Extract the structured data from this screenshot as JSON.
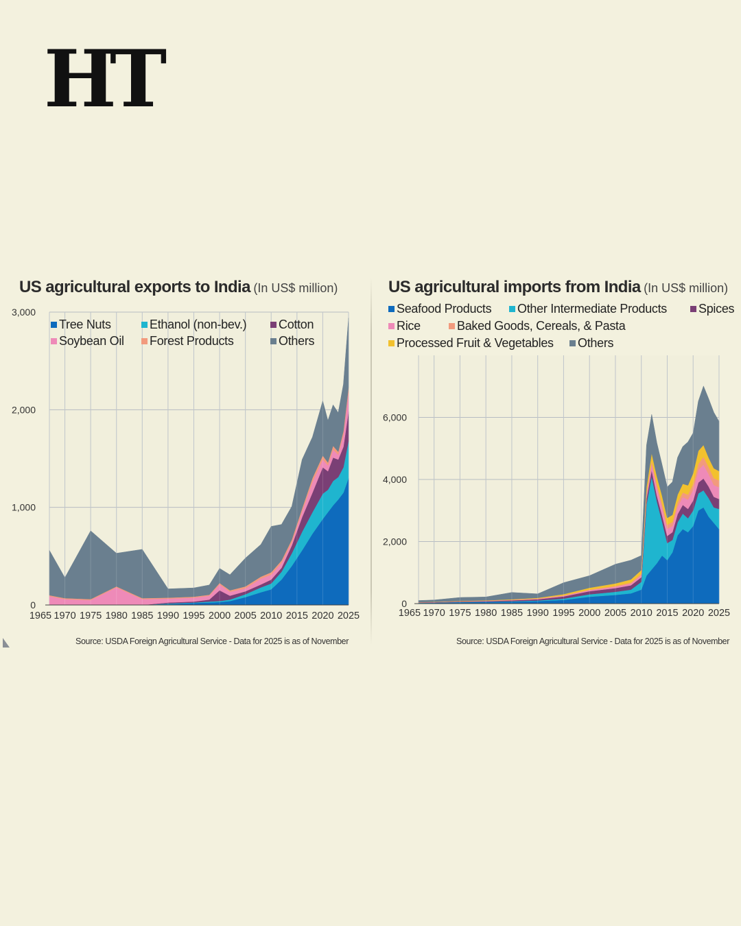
{
  "logo": {
    "text": "HT"
  },
  "charts": [
    {
      "id": "exports",
      "title": "US agricultural exports to India",
      "unit": "(In US$ million)",
      "source": "Source: USDA Foreign Agricultural Service - Data for 2025 is as of November"
    },
    {
      "id": "imports",
      "title": "US agricultural imports from India",
      "unit": "(In US$ million)",
      "source": "Source: USDA Foreign Agricultural Service - Data for 2025 is as of November"
    }
  ],
  "chart_data": [
    {
      "type": "area",
      "stacked": true,
      "title": "US agricultural exports to India",
      "subtitle": "(In US$ million)",
      "x_axis": {
        "min": 1967,
        "max": 2025,
        "ticks": [
          1965,
          1970,
          1975,
          1980,
          1985,
          1990,
          1995,
          2000,
          2005,
          2010,
          2015,
          2020,
          2025
        ]
      },
      "y_axis": {
        "min": 0,
        "max": 3000,
        "ticks": [
          0,
          1000,
          2000,
          3000
        ],
        "tick_labels": [
          "0",
          "1,000",
          "2,000",
          "3,000"
        ]
      },
      "grid": true,
      "legend": {
        "position": "top-left",
        "columns": 3
      },
      "series": [
        {
          "name": "Tree Nuts",
          "color": "#0e6bbd",
          "x": [
            1967,
            1970,
            1975,
            1980,
            1985,
            1990,
            1995,
            1998,
            2000,
            2002,
            2005,
            2008,
            2010,
            2012,
            2014,
            2016,
            2018,
            2020,
            2021,
            2022,
            2023,
            2024,
            2025
          ],
          "values": [
            0,
            0,
            0,
            0,
            0,
            10,
            20,
            25,
            30,
            40,
            80,
            130,
            160,
            260,
            400,
            560,
            730,
            880,
            950,
            1020,
            1080,
            1150,
            1300
          ]
        },
        {
          "name": "Ethanol (non-bev.)",
          "color": "#1fb5cf",
          "x": [
            1967,
            1970,
            1975,
            1980,
            1985,
            1990,
            1995,
            1998,
            2000,
            2002,
            2005,
            2008,
            2010,
            2012,
            2014,
            2016,
            2018,
            2020,
            2021,
            2022,
            2023,
            2024,
            2025
          ],
          "values": [
            0,
            0,
            0,
            0,
            0,
            5,
            5,
            10,
            10,
            15,
            30,
            50,
            60,
            80,
            130,
            190,
            220,
            260,
            230,
            250,
            230,
            260,
            380
          ]
        },
        {
          "name": "Cotton",
          "color": "#7a3f75",
          "x": [
            1967,
            1970,
            1975,
            1980,
            1985,
            1990,
            1995,
            1998,
            2000,
            2002,
            2005,
            2008,
            2010,
            2012,
            2014,
            2016,
            2018,
            2020,
            2021,
            2022,
            2023,
            2024,
            2025
          ],
          "values": [
            0,
            0,
            0,
            0,
            0,
            10,
            10,
            20,
            110,
            40,
            30,
            30,
            40,
            40,
            80,
            150,
            200,
            270,
            190,
            240,
            180,
            210,
            300
          ]
        },
        {
          "name": "Soybean Oil",
          "color": "#ee8ab8",
          "x": [
            1967,
            1970,
            1975,
            1980,
            1985,
            1990,
            1995,
            1998,
            2000,
            2002,
            2005,
            2008,
            2010,
            2012,
            2014,
            2016,
            2018,
            2020,
            2021,
            2022,
            2023,
            2024,
            2025
          ],
          "values": [
            90,
            60,
            50,
            180,
            60,
            40,
            40,
            40,
            60,
            40,
            30,
            60,
            50,
            50,
            30,
            60,
            110,
            80,
            60,
            80,
            50,
            120,
            200
          ]
        },
        {
          "name": "Forest Products",
          "color": "#f29a7d",
          "x": [
            1967,
            1970,
            1975,
            1980,
            1985,
            1990,
            1995,
            1998,
            2000,
            2002,
            2005,
            2008,
            2010,
            2012,
            2014,
            2016,
            2018,
            2020,
            2021,
            2022,
            2023,
            2024,
            2025
          ],
          "values": [
            10,
            10,
            10,
            10,
            10,
            10,
            10,
            10,
            15,
            15,
            20,
            20,
            25,
            25,
            30,
            30,
            40,
            40,
            30,
            40,
            30,
            40,
            50
          ]
        },
        {
          "name": "Others",
          "color": "#6a7f8f",
          "x": [
            1967,
            1970,
            1975,
            1980,
            1985,
            1990,
            1995,
            1998,
            2000,
            2002,
            2005,
            2008,
            2010,
            2012,
            2014,
            2016,
            2018,
            2020,
            2021,
            2022,
            2023,
            2024,
            2025
          ],
          "values": [
            460,
            210,
            700,
            340,
            500,
            90,
            90,
            100,
            150,
            160,
            290,
            330,
            470,
            370,
            340,
            500,
            420,
            560,
            430,
            420,
            400,
            480,
            710
          ]
        }
      ]
    },
    {
      "type": "area",
      "stacked": true,
      "title": "US agricultural imports from India",
      "subtitle": "(In US$ million)",
      "x_axis": {
        "min": 1967,
        "max": 2025,
        "ticks": [
          1965,
          1970,
          1975,
          1980,
          1985,
          1990,
          1995,
          2000,
          2005,
          2010,
          2015,
          2020,
          2025
        ]
      },
      "y_axis": {
        "min": 0,
        "max": 8000,
        "ticks": [
          0,
          2000,
          4000,
          6000
        ],
        "tick_labels": [
          "0",
          "2,000",
          "4,000",
          "6,000"
        ]
      },
      "grid": true,
      "legend": {
        "position": "top",
        "columns": 3
      },
      "series": [
        {
          "name": "Seafood Products",
          "color": "#0e6bbd",
          "x": [
            1967,
            1970,
            1975,
            1980,
            1985,
            1990,
            1995,
            2000,
            2005,
            2008,
            2010,
            2011,
            2012,
            2013,
            2014,
            2015,
            2016,
            2017,
            2018,
            2019,
            2020,
            2021,
            2022,
            2023,
            2024,
            2025
          ],
          "values": [
            20,
            25,
            40,
            50,
            60,
            80,
            120,
            220,
            280,
            330,
            450,
            900,
            1100,
            1300,
            1550,
            1400,
            1650,
            2200,
            2400,
            2300,
            2500,
            3000,
            3100,
            2800,
            2600,
            2400
          ]
        },
        {
          "name": "Other Intermediate Products",
          "color": "#1fb5cf",
          "x": [
            1967,
            1970,
            1975,
            1980,
            1985,
            1990,
            1995,
            2000,
            2005,
            2008,
            2010,
            2011,
            2012,
            2013,
            2014,
            2015,
            2016,
            2017,
            2018,
            2019,
            2020,
            2021,
            2022,
            2023,
            2024,
            2025
          ],
          "values": [
            5,
            5,
            10,
            10,
            15,
            20,
            40,
            80,
            100,
            120,
            250,
            2300,
            3000,
            2000,
            1100,
            550,
            400,
            420,
            500,
            450,
            500,
            550,
            550,
            600,
            500,
            650
          ]
        },
        {
          "name": "Spices",
          "color": "#7a3f75",
          "x": [
            1967,
            1970,
            1975,
            1980,
            1985,
            1990,
            1995,
            2000,
            2005,
            2008,
            2010,
            2011,
            2012,
            2013,
            2014,
            2015,
            2016,
            2017,
            2018,
            2019,
            2020,
            2021,
            2022,
            2023,
            2024,
            2025
          ],
          "values": [
            10,
            12,
            18,
            20,
            30,
            40,
            70,
            100,
            120,
            140,
            150,
            180,
            200,
            180,
            200,
            230,
            250,
            260,
            280,
            300,
            320,
            350,
            380,
            370,
            340,
            320
          ]
        },
        {
          "name": "Rice",
          "color": "#ee8ab8",
          "x": [
            1967,
            1970,
            1975,
            1980,
            1985,
            1990,
            1995,
            2000,
            2005,
            2008,
            2010,
            2011,
            2012,
            2013,
            2014,
            2015,
            2016,
            2017,
            2018,
            2019,
            2020,
            2021,
            2022,
            2023,
            2024,
            2025
          ],
          "values": [
            5,
            5,
            5,
            10,
            10,
            15,
            20,
            30,
            40,
            50,
            60,
            100,
            200,
            250,
            250,
            230,
            200,
            240,
            250,
            300,
            350,
            400,
            450,
            400,
            380,
            380
          ]
        },
        {
          "name": "Baked Goods, Cereals, & Pasta",
          "color": "#f29a7d",
          "x": [
            1967,
            1970,
            1975,
            1980,
            1985,
            1990,
            1995,
            2000,
            2005,
            2008,
            2010,
            2011,
            2012,
            2013,
            2014,
            2015,
            2016,
            2017,
            2018,
            2019,
            2020,
            2021,
            2022,
            2023,
            2024,
            2025
          ],
          "values": [
            5,
            5,
            5,
            5,
            10,
            10,
            15,
            20,
            30,
            40,
            50,
            80,
            100,
            120,
            130,
            130,
            130,
            140,
            150,
            160,
            180,
            200,
            250,
            230,
            220,
            220
          ]
        },
        {
          "name": "Processed Fruit & Vegetables",
          "color": "#f2c12e",
          "x": [
            1967,
            1970,
            1975,
            1980,
            1985,
            1990,
            1995,
            2000,
            2005,
            2008,
            2010,
            2011,
            2012,
            2013,
            2014,
            2015,
            2016,
            2017,
            2018,
            2019,
            2020,
            2021,
            2022,
            2023,
            2024,
            2025
          ],
          "values": [
            5,
            5,
            10,
            10,
            15,
            20,
            40,
            60,
            80,
            100,
            120,
            200,
            250,
            250,
            250,
            220,
            230,
            250,
            280,
            300,
            350,
            420,
            380,
            300,
            320,
            300
          ]
        },
        {
          "name": "Others",
          "color": "#6a7f8f",
          "x": [
            1967,
            1970,
            1975,
            1980,
            1985,
            1990,
            1995,
            2000,
            2005,
            2008,
            2010,
            2011,
            2012,
            2013,
            2014,
            2015,
            2016,
            2017,
            2018,
            2019,
            2020,
            2021,
            2022,
            2023,
            2024,
            2025
          ],
          "values": [
            50,
            60,
            110,
            110,
            220,
            130,
            370,
            390,
            620,
            620,
            470,
            1340,
            1250,
            1080,
            1000,
            1000,
            1060,
            1200,
            1200,
            1400,
            1300,
            1600,
            1900,
            1900,
            1800,
            1600
          ]
        }
      ]
    }
  ]
}
